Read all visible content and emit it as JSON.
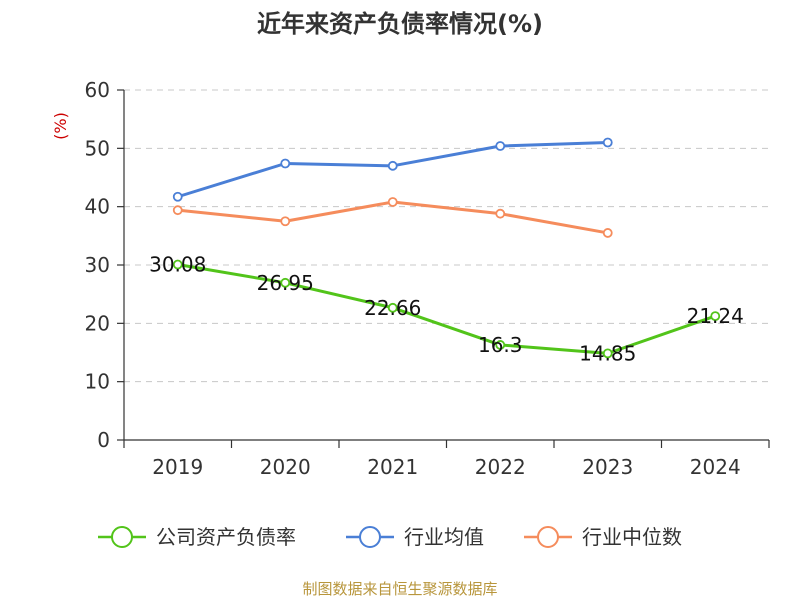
{
  "chart_data": {
    "type": "line",
    "title": "近年来资产负债率情况(%)",
    "ylabel": "(%)",
    "xlabel": "",
    "ylim": [
      0,
      60
    ],
    "yticks": [
      0,
      10,
      20,
      30,
      40,
      50,
      60
    ],
    "categories": [
      "2019",
      "2020",
      "2021",
      "2022",
      "2023",
      "2024"
    ],
    "grid": true,
    "legend_position": "bottom",
    "series": [
      {
        "name": "公司资产负债率",
        "color": "#52c41a",
        "values": [
          30.08,
          26.95,
          22.66,
          16.3,
          14.85,
          21.24
        ],
        "labels": [
          "30.08",
          "26.95",
          "22.66",
          "16.3",
          "14.85",
          "21.24"
        ]
      },
      {
        "name": "行业均值",
        "color": "#4a7fd6",
        "values": [
          41.7,
          47.4,
          47.0,
          50.4,
          51.0,
          null
        ]
      },
      {
        "name": "行业中位数",
        "color": "#f58c5c",
        "values": [
          39.4,
          37.5,
          40.8,
          38.8,
          35.5,
          null
        ]
      }
    ]
  },
  "source": "制图数据来自恒生聚源数据库"
}
